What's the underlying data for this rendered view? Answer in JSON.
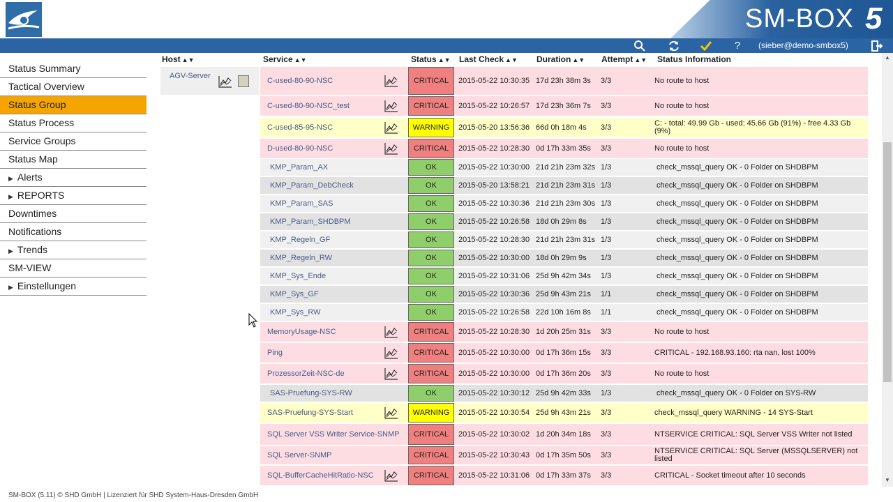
{
  "brand": {
    "name": "SM-BOX",
    "version": "5"
  },
  "topbar": {
    "user": "(sieber@demo-smbox5)"
  },
  "icons": [
    "search-icon",
    "refresh-icon",
    "checkmark-icon",
    "help-icon",
    "logout-icon"
  ],
  "sidebar": {
    "items": [
      {
        "label": "Status Summary",
        "expandable": false,
        "active": false
      },
      {
        "label": "Tactical Overview",
        "expandable": false,
        "active": false
      },
      {
        "label": "Status Group",
        "expandable": false,
        "active": true
      },
      {
        "label": "Status Process",
        "expandable": false,
        "active": false
      },
      {
        "label": "Service Groups",
        "expandable": false,
        "active": false
      },
      {
        "label": "Status Map",
        "expandable": false,
        "active": false
      },
      {
        "label": "Alerts",
        "expandable": true,
        "active": false
      },
      {
        "label": "REPORTS",
        "expandable": true,
        "active": false
      },
      {
        "label": "Downtimes",
        "expandable": false,
        "active": false
      },
      {
        "label": "Notifications",
        "expandable": false,
        "active": false
      },
      {
        "label": "Trends",
        "expandable": true,
        "active": false
      },
      {
        "label": "SM-VIEW",
        "expandable": false,
        "active": false
      },
      {
        "label": "Einstellungen",
        "expandable": true,
        "active": false
      }
    ]
  },
  "table": {
    "headers": {
      "host": "Host",
      "service": "Service",
      "status": "Status",
      "last_check": "Last Check",
      "duration": "Duration",
      "attempt": "Attempt",
      "info": "Status Information"
    },
    "host": "AGV-Server",
    "rows": [
      {
        "service": "C-used-80-90-NSC",
        "status": "CRITICAL",
        "last_check": "2015-05-22 10:30:35",
        "duration": "17d 23h 38m 3s",
        "attempt": "3/3",
        "info": "No route to host",
        "graph": true
      },
      {
        "service": "C-used-80-90-NSC_test",
        "status": "CRITICAL",
        "last_check": "2015-05-22 10:26:57",
        "duration": "17d 23h 36m 7s",
        "attempt": "3/3",
        "info": "No route to host",
        "graph": true
      },
      {
        "service": "C-used-85-95-NSC",
        "status": "WARNING",
        "last_check": "2015-05-20 13:56:36",
        "duration": "66d 0h 18m 4s",
        "attempt": "3/3",
        "info": "C: - total: 49.99 Gb - used: 45.66 Gb (91%) - free 4.33 Gb (9%)",
        "graph": true
      },
      {
        "service": "D-used-80-90-NSC",
        "status": "CRITICAL",
        "last_check": "2015-05-22 10:28:30",
        "duration": "0d 17h 33m 35s",
        "attempt": "3/3",
        "info": "No route to host",
        "graph": true
      },
      {
        "service": "KMP_Param_AX",
        "status": "OK",
        "last_check": "2015-05-22 10:30:00",
        "duration": "21d 21h 23m 32s",
        "attempt": "1/3",
        "info": "check_mssql_query OK - 0 Folder on SHDBPM",
        "graph": false
      },
      {
        "service": "KMP_Param_DebCheck",
        "status": "OK",
        "last_check": "2015-05-20 13:58:21",
        "duration": "21d 21h 23m 31s",
        "attempt": "1/3",
        "info": "check_mssql_query OK - 0 Folder on SHDBPM",
        "graph": false
      },
      {
        "service": "KMP_Param_SAS",
        "status": "OK",
        "last_check": "2015-05-22 10:30:36",
        "duration": "21d 21h 23m 30s",
        "attempt": "1/3",
        "info": "check_mssql_query OK - 0 Folder on SHDBPM",
        "graph": false
      },
      {
        "service": "KMP_Param_SHDBPM",
        "status": "OK",
        "last_check": "2015-05-22 10:26:58",
        "duration": "18d 0h 29m 8s",
        "attempt": "1/3",
        "info": "check_mssql_query OK - 0 Folder on SHDBPM",
        "graph": false
      },
      {
        "service": "KMP_Regeln_GF",
        "status": "OK",
        "last_check": "2015-05-22 10:28:30",
        "duration": "21d 21h 23m 31s",
        "attempt": "1/3",
        "info": "check_mssql_query OK - 0 Folder on SHDBPM",
        "graph": false
      },
      {
        "service": "KMP_Regeln_RW",
        "status": "OK",
        "last_check": "2015-05-22 10:30:00",
        "duration": "18d 0h 29m 9s",
        "attempt": "1/3",
        "info": "check_mssql_query OK - 0 Folder on SHDBPM",
        "graph": false
      },
      {
        "service": "KMP_Sys_Ende",
        "status": "OK",
        "last_check": "2015-05-22 10:31:06",
        "duration": "25d 9h 42m 34s",
        "attempt": "1/3",
        "info": "check_mssql_query OK - 0 Folder on SHDBPM",
        "graph": false
      },
      {
        "service": "KMP_Sys_GF",
        "status": "OK",
        "last_check": "2015-05-22 10:30:36",
        "duration": "25d 9h 43m 21s",
        "attempt": "1/1",
        "info": "check_mssql_query OK - 0 Folder on SHDBPM",
        "graph": false
      },
      {
        "service": "KMP_Sys_RW",
        "status": "OK",
        "last_check": "2015-05-22 10:26:58",
        "duration": "22d 10h 16m 8s",
        "attempt": "1/1",
        "info": "check_mssql_query OK - 0 Folder on SHDBPM",
        "graph": false
      },
      {
        "service": "MemoryUsage-NSC",
        "status": "CRITICAL",
        "last_check": "2015-05-22 10:28:30",
        "duration": "1d 20h 25m 31s",
        "attempt": "3/3",
        "info": "No route to host",
        "graph": true
      },
      {
        "service": "Ping",
        "status": "CRITICAL",
        "last_check": "2015-05-22 10:30:00",
        "duration": "0d 17h 36m 15s",
        "attempt": "3/3",
        "info": "CRITICAL - 192.168.93.160: rta nan, lost 100%",
        "graph": true
      },
      {
        "service": "ProzessorZeit-NSC-de",
        "status": "CRITICAL",
        "last_check": "2015-05-22 10:30:00",
        "duration": "0d 17h 36m 20s",
        "attempt": "3/3",
        "info": "No route to host",
        "graph": true
      },
      {
        "service": "SAS-Pruefung-SYS-RW",
        "status": "OK",
        "last_check": "2015-05-22 10:30:12",
        "duration": "25d 9h 42m 33s",
        "attempt": "1/3",
        "info": "check_mssql_query OK - 0 Folder on SYS-RW",
        "graph": false
      },
      {
        "service": "SAS-Pruefung-SYS-Start",
        "status": "WARNING",
        "last_check": "2015-05-22 10:30:54",
        "duration": "25d 9h 43m 21s",
        "attempt": "3/3",
        "info": "check_mssql_query WARNING - 14 SYS-Start",
        "graph": true
      },
      {
        "service": "SQL Server VSS Writer Service-SNMP",
        "status": "CRITICAL",
        "last_check": "2015-05-22 10:30:02",
        "duration": "1d 20h 34m 18s",
        "attempt": "3/3",
        "info": "NTSERVICE CRITICAL: SQL Server VSS Writer not listed",
        "graph": false
      },
      {
        "service": "SQL Server-SNMP",
        "status": "CRITICAL",
        "last_check": "2015-05-22 10:30:43",
        "duration": "0d 17h 35m 50s",
        "attempt": "3/3",
        "info": "NTSERVICE CRITICAL: SQL Server (MSSQLSERVER) not listed",
        "graph": false
      },
      {
        "service": "SQL-BufferCacheHitRatio-NSC",
        "status": "CRITICAL",
        "last_check": "2015-05-22 10:31:06",
        "duration": "0d 17h 33m 37s",
        "attempt": "3/3",
        "info": "CRITICAL - Socket timeout after 10 seconds",
        "graph": true
      }
    ]
  },
  "footer": {
    "text": "SM-BOX (5.11) © SHD GmbH | Lizenziert für SHD System-Haus-Dresden GmbH"
  },
  "colors": {
    "critical": "#f08080",
    "critical_row": "#fddde2",
    "warning": "#ffff00",
    "warning_row": "#ffffc8",
    "ok": "#8fce6b",
    "ok_row_a": "#f0f0f0",
    "ok_row_b": "#e2e2e2",
    "accent": "#f5a400",
    "topbar": "#2a64a4"
  }
}
